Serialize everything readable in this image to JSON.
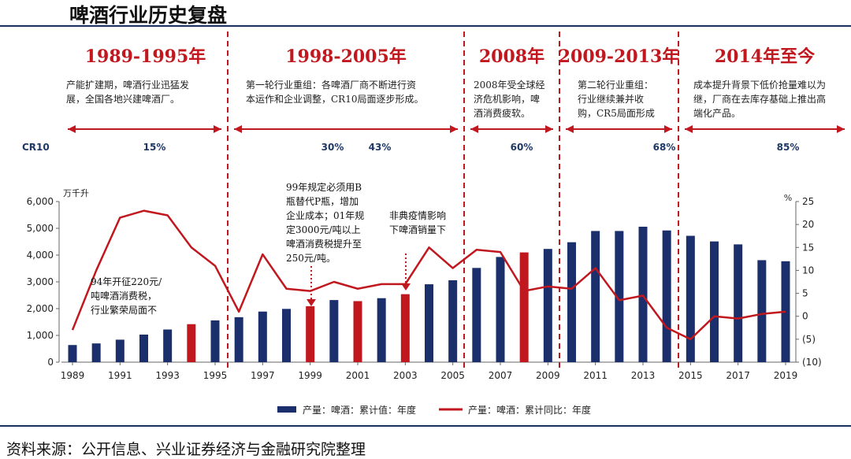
{
  "title": "啤酒行业历史复盘",
  "source": "资料来源：公开信息、兴业证券经济与金融研究院整理",
  "eras": [
    {
      "title": "1989-1995年",
      "desc": [
        "产能扩建期，啤酒行业迅猛发",
        "展，全国各地兴建啤酒厂。"
      ]
    },
    {
      "title": "1998-2005年",
      "desc": [
        "第一轮行业重组：各啤酒厂商不断进行资",
        "本运作和企业调整，CR10局面逐步形成。"
      ]
    },
    {
      "title": "2008年",
      "desc": [
        "2008年受全球经",
        "济危机影响，啤",
        "酒消费疲软。"
      ]
    },
    {
      "title": "2009-2013年",
      "desc": [
        "第二轮行业重组：",
        "行业继续兼并收",
        "购，CR5局面形成"
      ]
    },
    {
      "title": "2014年至今",
      "desc": [
        "成本提升背景下低价抢量难以为",
        "继，厂商在去库存基础上推出高",
        "端化产品。"
      ]
    }
  ],
  "cr_label": "CR10",
  "cr_values": [
    "15%",
    "30%",
    "43%",
    "60%",
    "68%",
    "85%"
  ],
  "annotations": {
    "a1994": [
      "94年开征220元/",
      "吨啤酒消费税，",
      "行业繁荣局面不"
    ],
    "a1999": [
      "99年规定必须用B",
      "瓶替代P瓶，增加",
      "企业成本；01年规",
      "定3000元/吨以上",
      "啤酒消费税提升至",
      "250元/吨。"
    ],
    "a2003": [
      "非典疫情影响",
      "下啤酒销量下"
    ]
  },
  "colors": {
    "bar_blue": "#1a2f6b",
    "bar_red": "#c0181e",
    "line_red": "#c0181e",
    "divider_red": "#c0181e",
    "rule_navy": "#1a2f5e"
  },
  "chart_data": {
    "type": "bar+line",
    "x": [
      1989,
      1990,
      1991,
      1992,
      1993,
      1994,
      1995,
      1996,
      1997,
      1998,
      1999,
      2000,
      2001,
      2002,
      2003,
      2004,
      2005,
      2006,
      2007,
      2008,
      2009,
      2010,
      2011,
      2012,
      2013,
      2014,
      2015,
      2016,
      2017,
      2018,
      2019
    ],
    "xtick_labels": [
      "1989",
      "1991",
      "1993",
      "1995",
      "1997",
      "1999",
      "2001",
      "2003",
      "2005",
      "2007",
      "2009",
      "2011",
      "2013",
      "2015",
      "2017",
      "2019"
    ],
    "ylabel": "万千升",
    "y2label": "%",
    "ylim": [
      0,
      6000
    ],
    "y2lim": [
      -10,
      25
    ],
    "yticks": [
      "0",
      "1,000",
      "2,000",
      "3,000",
      "4,000",
      "5,000",
      "6,000"
    ],
    "y2ticks": [
      "(10)",
      "(5)",
      "0",
      "5",
      "10",
      "15",
      "20",
      "25"
    ],
    "series": [
      {
        "name": "产量：啤酒：累计值：年度",
        "kind": "bar",
        "values": [
          640,
          700,
          840,
          1030,
          1220,
          1420,
          1560,
          1680,
          1890,
          1990,
          2090,
          2320,
          2280,
          2390,
          2540,
          2910,
          3060,
          3520,
          3930,
          4100,
          4230,
          4480,
          4900,
          4900,
          5060,
          4920,
          4720,
          4510,
          4400,
          3810,
          3770
        ],
        "highlight": [
          1994,
          1999,
          2001,
          2003,
          2008
        ]
      },
      {
        "name": "产量：啤酒：累计同比：年度",
        "kind": "line",
        "values": [
          -3,
          10,
          21.5,
          23,
          22,
          15,
          11,
          1,
          13.5,
          6,
          5.5,
          7.5,
          6,
          7,
          7,
          15,
          10.5,
          14.5,
          14,
          5.5,
          6.5,
          6,
          10.5,
          3.5,
          4.5,
          -2.5,
          -5,
          0,
          -0.5,
          0.5,
          1
        ]
      }
    ],
    "legend": "bottom"
  }
}
